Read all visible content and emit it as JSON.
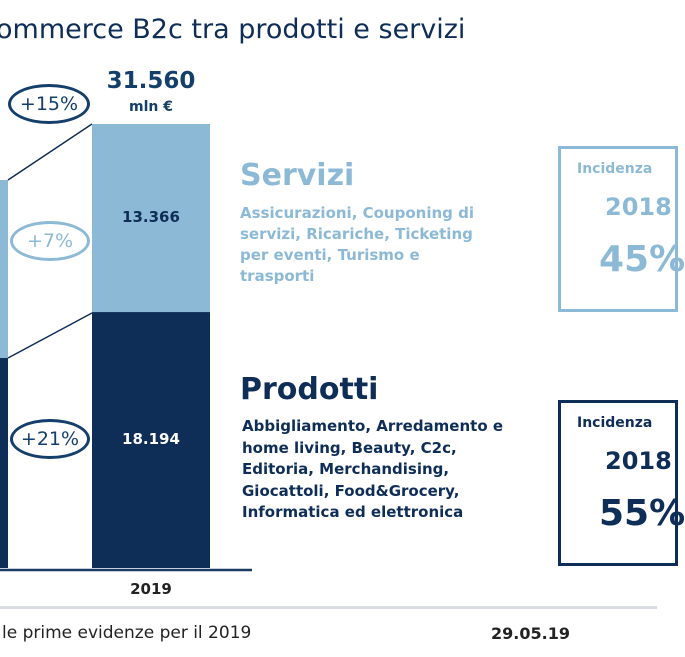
{
  "title": "ommerce B2c tra prodotti e servizi",
  "total": {
    "value": "31.560",
    "unit": "mln €"
  },
  "growth": {
    "total": "+15%",
    "servizi": "+7%",
    "prodotti": "+21%"
  },
  "chart_data": {
    "type": "bar",
    "stacked": true,
    "categories": [
      "2019"
    ],
    "series": [
      {
        "name": "Prodotti",
        "values": [
          18194
        ],
        "label": "18.194",
        "color": "#0e2d57"
      },
      {
        "name": "Servizi",
        "values": [
          13366
        ],
        "label": "13.366",
        "color": "#8cbad6"
      }
    ],
    "total": 31560,
    "unit": "mln €",
    "xlabel": "2019"
  },
  "servizi": {
    "title": "Servizi",
    "description": "Assicurazioni, Couponing di servizi, Ricariche, Ticketing per eventi, Turismo e trasporti"
  },
  "prodotti": {
    "title": "Prodotti",
    "description": "Abbigliamento, Arredamento e home living, Beauty, C2c, Editoria, Merchandising, Giocattoli, Food&Grocery, Informatica ed elettronica"
  },
  "box_servizi": {
    "label": "Incidenza",
    "year": "2018",
    "percent": "45%"
  },
  "box_prodotti": {
    "label": "Incidenza",
    "year": "2018",
    "percent": "55%"
  },
  "footer": {
    "text": "le prime evidenze per il 2019",
    "date": "29.05.19"
  },
  "colors": {
    "dark": "#0e2d57",
    "light": "#8cbad6"
  }
}
